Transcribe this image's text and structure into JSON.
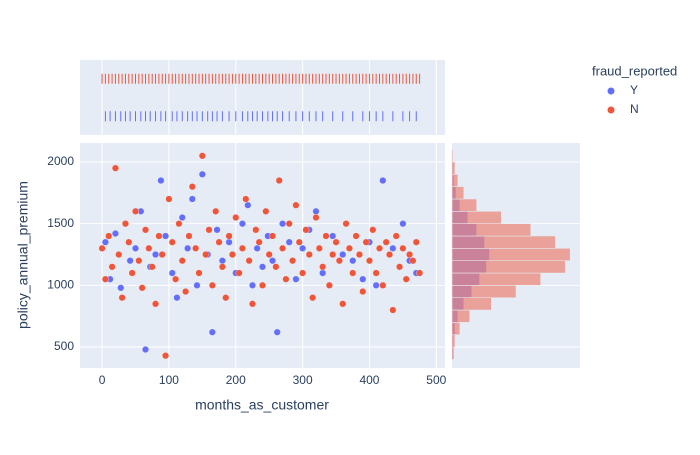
{
  "chart_data": {
    "type": "scatter_marginal",
    "x_label": "months_as_customer",
    "y_label": "policy_annual_premium",
    "legend_title": "fraud_reported",
    "legend_position": "top-right",
    "grid": true,
    "xlim": [
      -33,
      513
    ],
    "xticks": [
      0,
      100,
      200,
      300,
      400,
      500
    ],
    "ylim": [
      330,
      2154
    ],
    "yticks": [
      500,
      1000,
      1500,
      2000
    ],
    "hist_xlim": [
      0,
      130
    ],
    "hist_bins": [
      400,
      500,
      600,
      700,
      800,
      900,
      1000,
      1100,
      1200,
      1300,
      1400,
      1500,
      1600,
      1700,
      1800,
      1900,
      2000,
      2100
    ],
    "series": [
      {
        "name": "Y",
        "color": "#636efa",
        "x": [
          5,
          12,
          20,
          28,
          35,
          42,
          50,
          58,
          65,
          72,
          80,
          88,
          95,
          105,
          112,
          120,
          128,
          135,
          142,
          150,
          158,
          165,
          172,
          180,
          190,
          200,
          210,
          218,
          225,
          232,
          240,
          248,
          255,
          262,
          270,
          280,
          290,
          300,
          310,
          320,
          330,
          345,
          360,
          375,
          390,
          400,
          410,
          420,
          435,
          450,
          460,
          470
        ],
        "y": [
          1350,
          1050,
          1420,
          980,
          1500,
          1200,
          1300,
          1600,
          480,
          1150,
          1250,
          1850,
          1400,
          1100,
          900,
          1550,
          1300,
          1700,
          1000,
          1900,
          1250,
          620,
          1450,
          1200,
          1350,
          1100,
          1500,
          1650,
          1000,
          1300,
          1150,
          1400,
          1200,
          620,
          1500,
          1350,
          1050,
          1300,
          1450,
          1600,
          1100,
          1400,
          1250,
          1200,
          1050,
          1350,
          1000,
          1850,
          1300,
          1500,
          1200,
          1100
        ],
        "hist_counts": [
          1,
          1,
          3,
          6,
          12,
          20,
          28,
          35,
          38,
          33,
          25,
          16,
          8,
          4,
          2,
          1,
          0
        ]
      },
      {
        "name": "N",
        "color": "#ef553b",
        "x": [
          0,
          5,
          10,
          15,
          20,
          25,
          30,
          35,
          40,
          45,
          50,
          55,
          60,
          65,
          70,
          75,
          80,
          85,
          90,
          95,
          100,
          105,
          110,
          115,
          120,
          125,
          130,
          135,
          140,
          145,
          150,
          155,
          160,
          165,
          170,
          175,
          180,
          185,
          190,
          195,
          200,
          205,
          210,
          215,
          220,
          225,
          230,
          235,
          240,
          245,
          250,
          255,
          260,
          265,
          270,
          275,
          280,
          285,
          290,
          295,
          300,
          305,
          310,
          315,
          320,
          325,
          330,
          335,
          340,
          345,
          350,
          355,
          360,
          365,
          370,
          375,
          380,
          385,
          390,
          395,
          400,
          405,
          410,
          415,
          420,
          425,
          430,
          435,
          440,
          445,
          450,
          455,
          460,
          465,
          470,
          475
        ],
        "y": [
          1300,
          1050,
          1400,
          1150,
          1950,
          1250,
          900,
          1500,
          1350,
          1100,
          1600,
          1200,
          980,
          1450,
          1300,
          1150,
          850,
          1400,
          1250,
          430,
          1700,
          1350,
          1050,
          1500,
          1200,
          950,
          1400,
          1800,
          1300,
          1100,
          2050,
          1250,
          1450,
          1000,
          1600,
          1350,
          1150,
          900,
          1400,
          1250,
          1550,
          1100,
          1300,
          1700,
          1200,
          850,
          1450,
          1350,
          1000,
          1600,
          1250,
          1400,
          1150,
          1850,
          1300,
          1050,
          1500,
          1200,
          1650,
          1350,
          1100,
          1450,
          1250,
          900,
          1550,
          1300,
          1150,
          1400,
          1000,
          1250,
          1350,
          1200,
          850,
          1500,
          1300,
          1100,
          1400,
          1250,
          950,
          1350,
          1200,
          1450,
          1100,
          1300,
          1000,
          1350,
          1250,
          800,
          1400,
          1150,
          1300,
          1050,
          1250,
          1200,
          1350,
          1100
        ],
        "hist_counts": [
          2,
          3,
          8,
          18,
          40,
          65,
          90,
          115,
          120,
          105,
          80,
          50,
          25,
          12,
          6,
          3,
          1
        ]
      }
    ]
  }
}
